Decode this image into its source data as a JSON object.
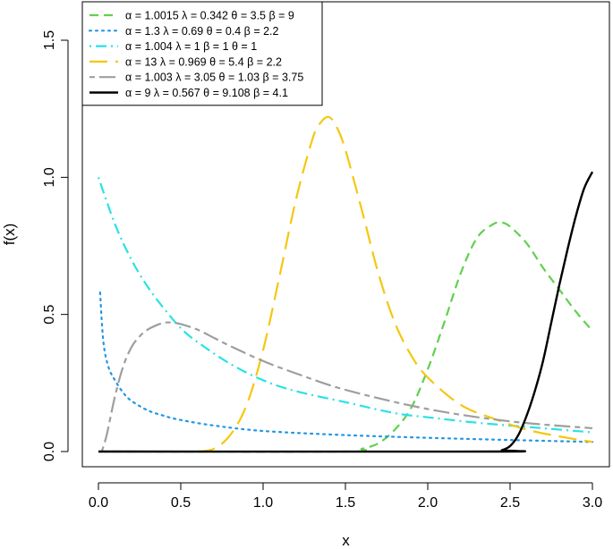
{
  "chart_data": {
    "type": "line",
    "title": "",
    "xlabel": "x",
    "ylabel": "f(x)",
    "xlim": [
      0,
      3
    ],
    "ylim": [
      0,
      1.6
    ],
    "xticks": [
      "0.0",
      "0.5",
      "1.0",
      "1.5",
      "2.0",
      "2.5",
      "3.0"
    ],
    "yticks": [
      "0.0",
      "0.5",
      "1.0",
      "1.5"
    ],
    "grid": false,
    "legend_position": "top-left",
    "series": [
      {
        "name": "α = 1.0015  λ = 0.342  θ = 3.5  β = 9",
        "color": "#61D04F",
        "linestyle": "dashed",
        "x": [
          0.0,
          1.5,
          1.6,
          1.7,
          1.8,
          1.9,
          2.0,
          2.1,
          2.2,
          2.3,
          2.4,
          2.45,
          2.5,
          2.6,
          2.7,
          2.8,
          2.9,
          3.0
        ],
        "y": [
          0.0,
          0.0,
          0.01,
          0.03,
          0.08,
          0.16,
          0.3,
          0.47,
          0.65,
          0.78,
          0.83,
          0.835,
          0.82,
          0.76,
          0.67,
          0.59,
          0.51,
          0.44
        ]
      },
      {
        "name": "α = 1.3  λ = 0.69  θ = 0.4  β = 2.2",
        "color": "#2297E6",
        "linestyle": "dotted",
        "x": [
          0.01,
          0.03,
          0.06,
          0.1,
          0.15,
          0.2,
          0.3,
          0.4,
          0.5,
          0.7,
          1.0,
          1.5,
          2.0,
          2.5,
          3.0
        ],
        "y": [
          0.58,
          0.4,
          0.31,
          0.26,
          0.215,
          0.185,
          0.15,
          0.13,
          0.115,
          0.095,
          0.075,
          0.06,
          0.05,
          0.042,
          0.035
        ]
      },
      {
        "name": "α = 1.004  λ = 1  β = 1  θ = 1",
        "color": "#28E2E5",
        "linestyle": "dotdash",
        "x": [
          0.0,
          0.1,
          0.2,
          0.3,
          0.4,
          0.5,
          0.6,
          0.8,
          1.0,
          1.2,
          1.5,
          1.8,
          2.0,
          2.3,
          2.6,
          3.0
        ],
        "y": [
          1.0,
          0.83,
          0.7,
          0.6,
          0.52,
          0.45,
          0.4,
          0.32,
          0.26,
          0.22,
          0.18,
          0.14,
          0.125,
          0.105,
          0.09,
          0.07
        ]
      },
      {
        "name": "α = 13  λ = 0.969  θ = 5.4  β = 2.2",
        "color": "#F5C710",
        "linestyle": "longdash",
        "x": [
          0.6,
          0.7,
          0.8,
          0.9,
          1.0,
          1.1,
          1.2,
          1.3,
          1.35,
          1.4,
          1.45,
          1.5,
          1.6,
          1.7,
          1.8,
          1.9,
          2.0,
          2.2,
          2.4,
          2.6,
          2.8,
          3.0
        ],
        "y": [
          0.0,
          0.01,
          0.06,
          0.17,
          0.37,
          0.64,
          0.92,
          1.14,
          1.2,
          1.22,
          1.18,
          1.1,
          0.88,
          0.65,
          0.47,
          0.35,
          0.27,
          0.17,
          0.12,
          0.08,
          0.055,
          0.035
        ]
      },
      {
        "name": "α = 1.003  λ = 3.05  θ = 1.03  β = 3.75",
        "color": "#9E9E9E",
        "linestyle": "twodash",
        "x": [
          0.02,
          0.05,
          0.1,
          0.15,
          0.2,
          0.25,
          0.3,
          0.35,
          0.4,
          0.45,
          0.5,
          0.6,
          0.7,
          0.8,
          1.0,
          1.2,
          1.5,
          2.0,
          2.5,
          3.0
        ],
        "y": [
          0.0,
          0.06,
          0.2,
          0.31,
          0.38,
          0.42,
          0.445,
          0.46,
          0.47,
          0.47,
          0.465,
          0.445,
          0.415,
          0.385,
          0.33,
          0.285,
          0.225,
          0.155,
          0.11,
          0.085
        ]
      },
      {
        "name": "α = 9  λ = 0.567  θ = 9.108  β = 4.1",
        "color": "#000000",
        "linestyle": "solid",
        "x": [
          0.0,
          2.4,
          2.45,
          2.5,
          2.55,
          2.6,
          2.65,
          2.7,
          2.75,
          2.8,
          2.85,
          2.9,
          2.95,
          3.0
        ],
        "y": [
          0.0,
          0.0,
          0.005,
          0.02,
          0.06,
          0.13,
          0.22,
          0.33,
          0.47,
          0.61,
          0.74,
          0.86,
          0.96,
          1.02
        ]
      }
    ]
  }
}
